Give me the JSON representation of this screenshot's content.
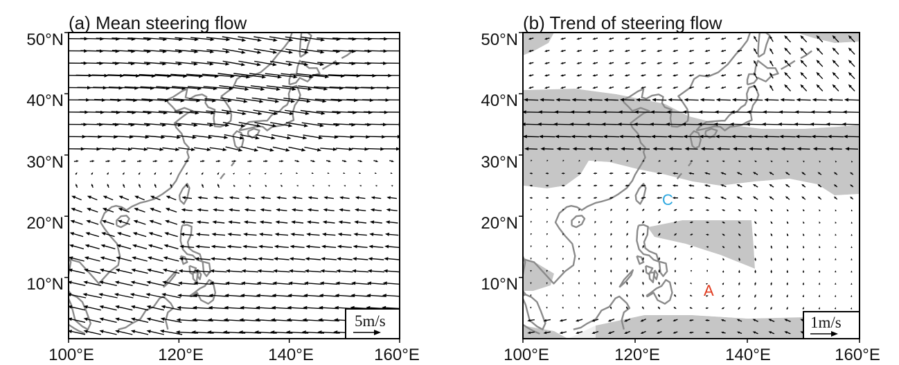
{
  "panels": [
    {
      "id": "a",
      "title": "(a) Mean steering flow",
      "reference_vector": "5m/s",
      "x_ticks": [
        "100°E",
        "120°E",
        "140°E",
        "160°E"
      ],
      "y_ticks": [
        "10°N",
        "20°N",
        "30°N",
        "40°N",
        "50°N"
      ]
    },
    {
      "id": "b",
      "title": "(b) Trend of steering flow",
      "reference_vector": "1m/s",
      "x_ticks": [
        "100°E",
        "120°E",
        "140°E",
        "160°E"
      ],
      "y_ticks": [
        "10°N",
        "20°N",
        "30°N",
        "40°N",
        "50°N"
      ],
      "markers": [
        {
          "label": "C",
          "color": "#2aa7e0"
        },
        {
          "label": "A",
          "color": "#e03a1e"
        }
      ]
    }
  ],
  "colors": {
    "coastline": "#8a8a8a",
    "vector": "#000000",
    "shading_light": "#efefef",
    "shading_dark": "#c6c6c6"
  }
}
